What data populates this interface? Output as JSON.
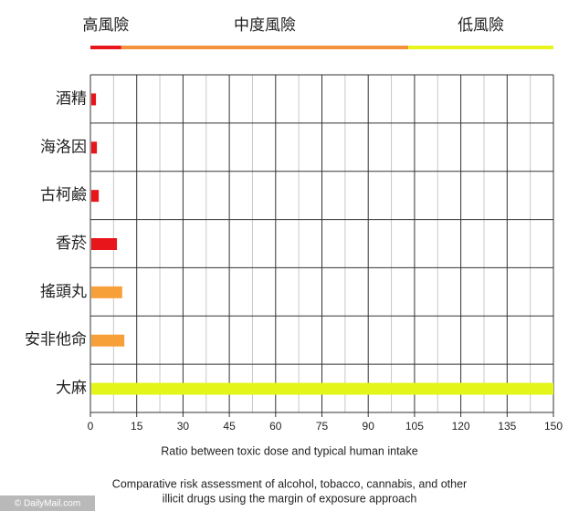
{
  "chart_data": {
    "type": "hbar",
    "risk_bands": [
      {
        "label": "高風險",
        "color": "#e8151b",
        "from": 0,
        "to": 10
      },
      {
        "label": "中度風險",
        "color": "#f5913a",
        "from": 10,
        "to": 103
      },
      {
        "label": "低風險",
        "color": "#e8f51a",
        "from": 103,
        "to": 150
      }
    ],
    "categories": [
      "酒精",
      "海洛因",
      "古柯鹼",
      "香菸",
      "搖頭丸",
      "安非他命",
      "大麻"
    ],
    "values": [
      1.5,
      1.8,
      2.4,
      8.3,
      10,
      10.7,
      149.7
    ],
    "colors": [
      "#e8151b",
      "#e8151b",
      "#e8151b",
      "#e8151b",
      "#f7a03a",
      "#f7a03a",
      "#e4f51a"
    ],
    "xlim": [
      0,
      150
    ],
    "xticks": [
      0,
      15,
      30,
      45,
      60,
      75,
      90,
      105,
      120,
      135,
      150
    ],
    "minor_xticks": [
      7.5,
      22.5,
      37.5,
      52.5,
      67.5,
      82.5,
      97.5,
      112.5,
      127.5,
      142.5
    ],
    "xlabel": "Ratio between toxic dose and typical human intake",
    "caption": [
      "Comparative risk assessment of alcohol, tobacco, cannabis, and other",
      "illicit drugs using the margin of exposure approach"
    ],
    "watermark": "© DailyMail.com"
  }
}
